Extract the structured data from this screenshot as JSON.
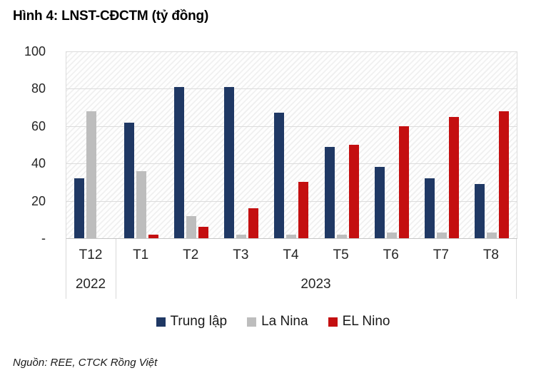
{
  "title": "Hình 4: LNST-CĐCTM (tỷ đồng)",
  "source": "Nguồn: REE, CTCK Rồng Việt",
  "chart_data": {
    "type": "bar",
    "title": "Hình 4: LNST-CĐCTM (tỷ đồng)",
    "categories": [
      "T12",
      "T1",
      "T2",
      "T3",
      "T4",
      "T5",
      "T6",
      "T7",
      "T8"
    ],
    "x_groups": [
      {
        "label": "2022",
        "span": 1
      },
      {
        "label": "2023",
        "span": 8
      }
    ],
    "series": [
      {
        "name": "Trung lập",
        "color": "#1F3864",
        "values": [
          32,
          62,
          81,
          81,
          67,
          49,
          38,
          32,
          29
        ]
      },
      {
        "name": "La Nina",
        "color": "#BDBDBD",
        "values": [
          68,
          36,
          12,
          2,
          2,
          2,
          3,
          3,
          3
        ]
      },
      {
        "name": "EL Nino",
        "color": "#C40F10",
        "values": [
          0,
          2,
          6,
          16,
          30,
          50,
          60,
          65,
          68
        ]
      }
    ],
    "ylim": [
      0,
      100
    ],
    "yticks": [
      {
        "label": "-",
        "value": 0
      },
      {
        "label": "20",
        "value": 20
      },
      {
        "label": "40",
        "value": 40
      },
      {
        "label": "60",
        "value": 60
      },
      {
        "label": "80",
        "value": 80
      },
      {
        "label": "100",
        "value": 100
      }
    ],
    "grid": true,
    "legend_position": "bottom",
    "plot_background": "diagonal-hatch"
  }
}
